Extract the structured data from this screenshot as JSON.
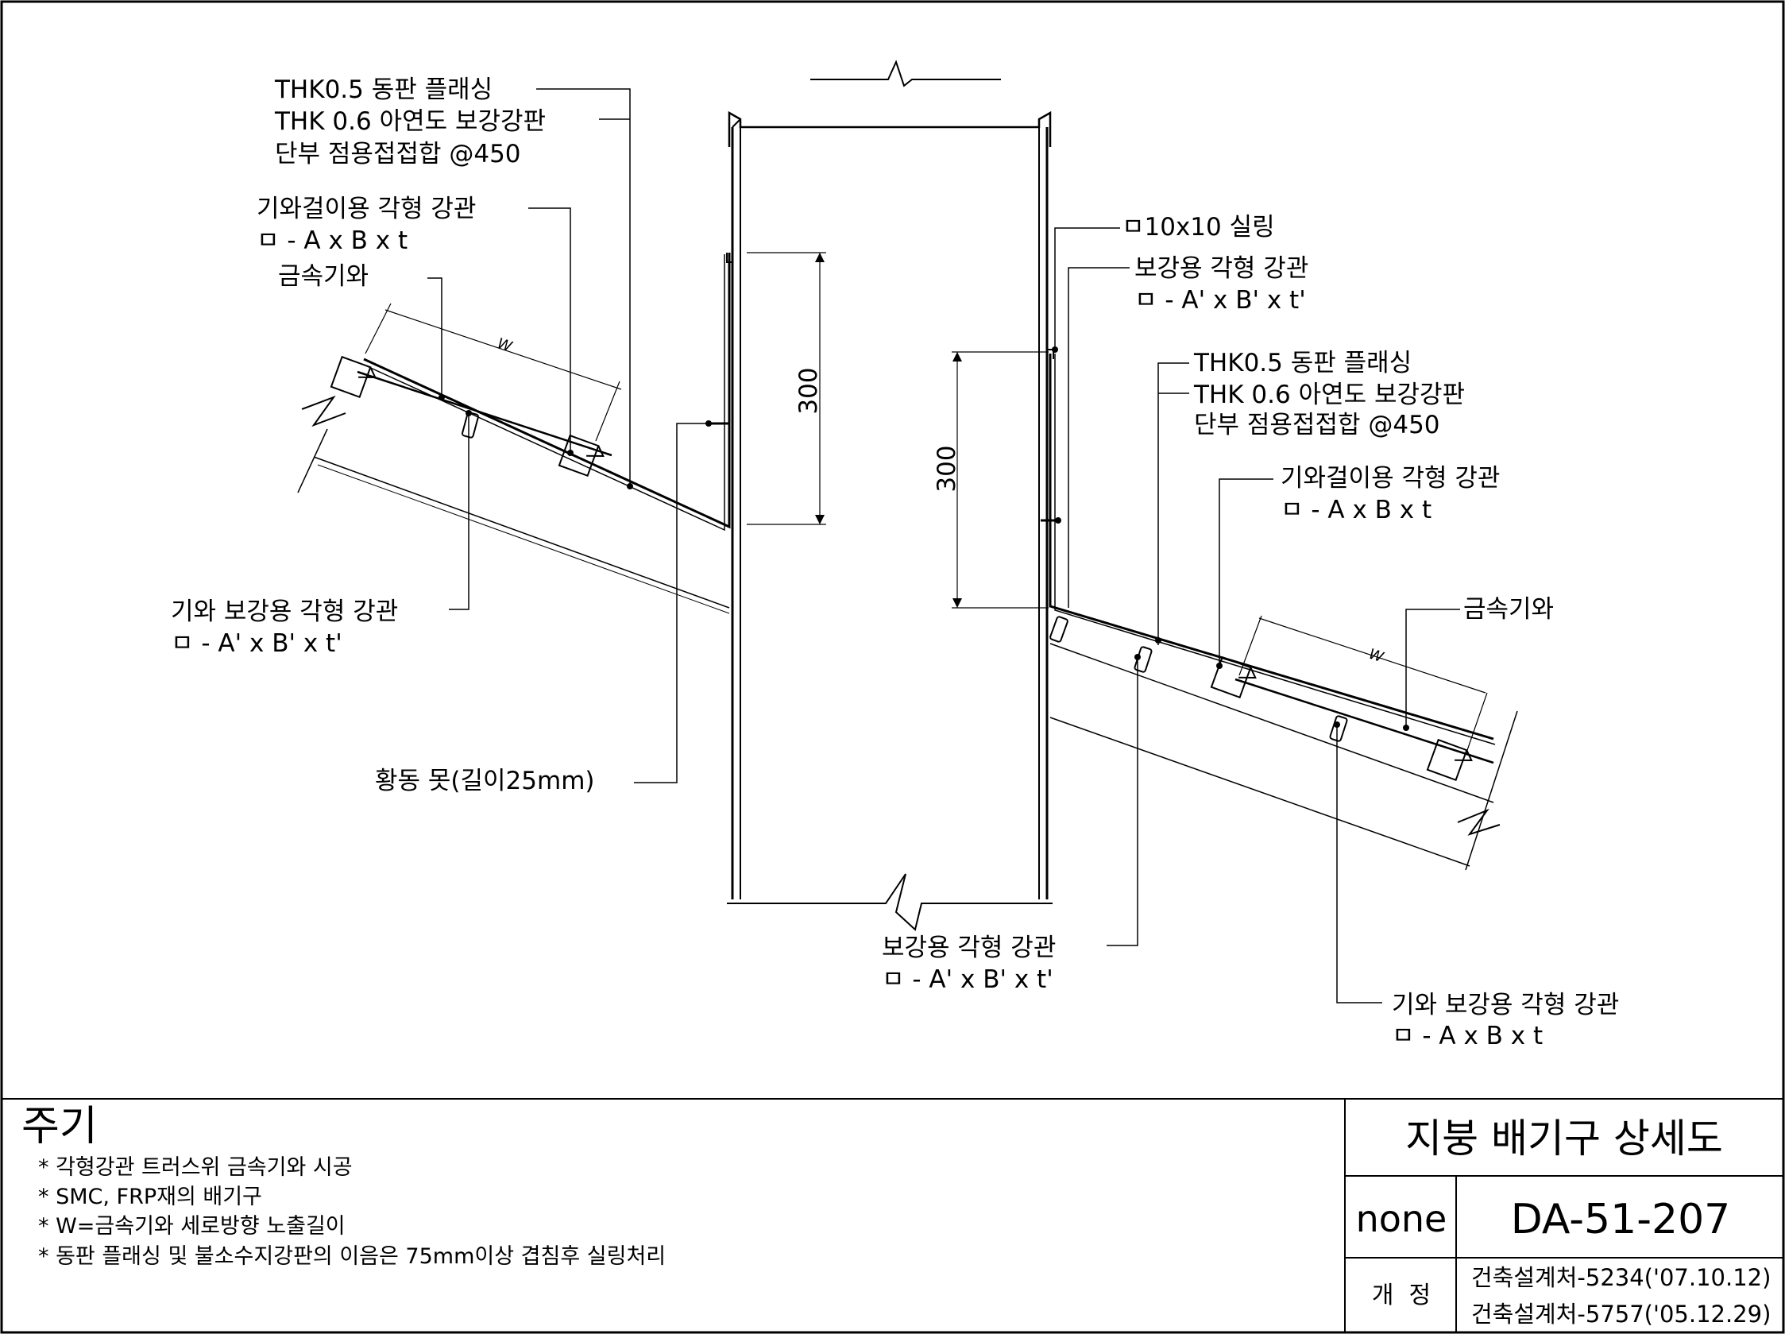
{
  "annotations": {
    "left_flashing_l1": "THK0.5 동판 플래싱",
    "left_flashing_l2": "THK 0.6 아연도 보강강판",
    "left_flashing_l3": "단부 점용접접합 @450",
    "left_tile_hanger_l1": "기와걸이용 각형 강관",
    "left_tile_hanger_l2": "ㅁ - A x B x t",
    "left_metal_tile": "금속기와",
    "left_reinforce_l1": "기와 보강용 각형 강관",
    "left_reinforce_l2": "ㅁ - A' x B' x t'",
    "brass_nail": "황동 못(길이25mm)",
    "sealing": "ㅁ10x10 실링",
    "right_reinforce_top_l1": "보강용 각형 강관",
    "right_reinforce_top_l2": "ㅁ - A' x B' x t'",
    "right_flashing_l1": "THK0.5 동판 플래싱",
    "right_flashing_l2": "THK 0.6 아연도 보강강판",
    "right_flashing_l3": "단부 점용접접합 @450",
    "right_tile_hanger_l1": "기와걸이용 각형 강관",
    "right_tile_hanger_l2": "ㅁ - A x B x t",
    "right_metal_tile": "금속기와",
    "bottom_reinforce_l1": "보강용 각형 강관",
    "bottom_reinforce_l2": "ㅁ - A' x B' x t'",
    "right_tile_reinforce_l1": "기와 보강용 각형 강관",
    "right_tile_reinforce_l2": "ㅁ - A x B x t"
  },
  "dimensions": {
    "w_label": "W",
    "left_height": "300",
    "right_height": "300"
  },
  "notes": {
    "title": "주기",
    "items": [
      "* 각형강관 트러스위 금속기와 시공",
      "* SMC, FRP재의 배기구",
      "* W=금속기와 세로방향 노출길이",
      "* 동판 플래싱 및 불소수지강판의 이음은 75mm이상 겹침후 실링처리"
    ]
  },
  "title_block": {
    "drawing_title": "지붕 배기구 상세도",
    "scale": "none",
    "drawing_number": "DA-51-207",
    "revision_label": "개  정",
    "revisions": [
      "건축설계처-5234('07.10.12)",
      "건축설계처-5757('05.12.29)"
    ]
  }
}
